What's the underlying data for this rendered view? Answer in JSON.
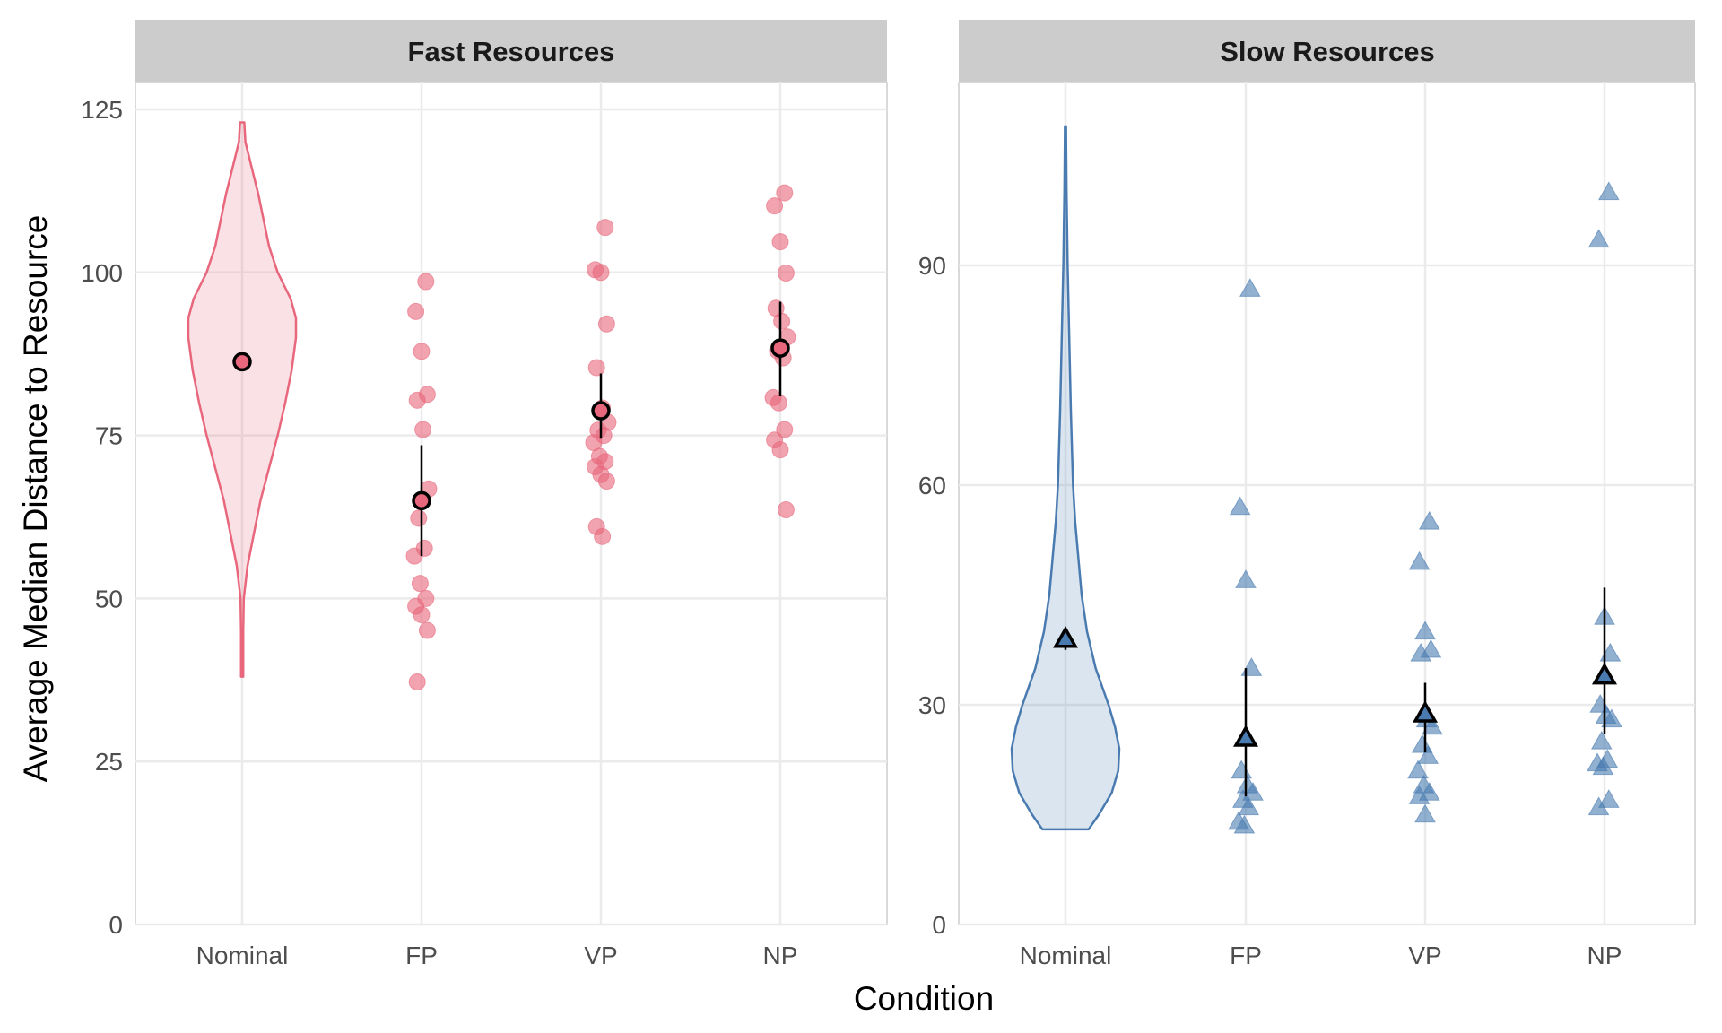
{
  "chart_data": [
    {
      "type": "violin+strip",
      "facet": "Fast Resources",
      "categories": [
        "Nominal",
        "FP",
        "VP",
        "NP"
      ],
      "ylim": [
        0,
        128
      ],
      "yticks": [
        0,
        25,
        50,
        75,
        100,
        125
      ],
      "marker": "circle",
      "color": "#E8677C",
      "violin": {
        "category": "Nominal",
        "min": 38,
        "max": 123,
        "profile": [
          [
            38,
            0.02
          ],
          [
            45,
            0.02
          ],
          [
            50,
            0.03
          ],
          [
            55,
            0.1
          ],
          [
            60,
            0.22
          ],
          [
            65,
            0.34
          ],
          [
            70,
            0.5
          ],
          [
            75,
            0.66
          ],
          [
            80,
            0.8
          ],
          [
            85,
            0.92
          ],
          [
            90,
            1.0
          ],
          [
            93,
            1.0
          ],
          [
            96,
            0.9
          ],
          [
            100,
            0.66
          ],
          [
            104,
            0.5
          ],
          [
            108,
            0.4
          ],
          [
            112,
            0.3
          ],
          [
            116,
            0.18
          ],
          [
            120,
            0.06
          ],
          [
            123,
            0.04
          ]
        ]
      },
      "mean": {
        "Nominal": 86.3,
        "FP": 65.0,
        "VP": 78.8,
        "NP": 88.4
      },
      "error_bars": {
        "FP": [
          56.5,
          73.5
        ],
        "VP": [
          74.5,
          84.5
        ],
        "NP": [
          81,
          95.5
        ]
      },
      "points": {
        "FP": [
          98.6,
          94.0,
          87.9,
          81.3,
          80.4,
          75.9,
          66.8,
          62.3,
          57.7,
          56.5,
          52.3,
          50.0,
          48.8,
          47.5,
          45.1,
          37.2
        ],
        "VP": [
          106.9,
          100.4,
          100.0,
          92.1,
          85.4,
          79.2,
          77.0,
          75.8,
          75.0,
          73.9,
          71.8,
          71.0,
          70.2,
          69.0,
          68.0,
          61.0,
          59.5
        ],
        "NP": [
          112.2,
          110.2,
          104.7,
          99.9,
          94.5,
          92.5,
          90.1,
          88.0,
          86.9,
          80.8,
          80.0,
          75.9,
          74.3,
          72.8,
          63.6
        ]
      },
      "xlabel": "Condition",
      "ylabel": "Average Median Distance to Resource"
    },
    {
      "type": "violin+strip",
      "facet": "Slow Resources",
      "categories": [
        "Nominal",
        "FP",
        "VP",
        "NP"
      ],
      "ylim": [
        0,
        114
      ],
      "yticks": [
        0,
        30,
        60,
        90
      ],
      "marker": "triangle",
      "color": "#4A7BB0",
      "violin": {
        "category": "Nominal",
        "min": 13,
        "max": 109,
        "profile": [
          [
            13,
            0.43
          ],
          [
            15,
            0.62
          ],
          [
            18,
            0.86
          ],
          [
            21,
            0.98
          ],
          [
            24,
            1.0
          ],
          [
            27,
            0.92
          ],
          [
            30,
            0.8
          ],
          [
            35,
            0.56
          ],
          [
            40,
            0.4
          ],
          [
            45,
            0.3
          ],
          [
            50,
            0.24
          ],
          [
            55,
            0.18
          ],
          [
            60,
            0.14
          ],
          [
            70,
            0.1
          ],
          [
            80,
            0.07
          ],
          [
            90,
            0.04
          ],
          [
            100,
            0.02
          ],
          [
            109,
            0.01
          ]
        ]
      },
      "mean": {
        "Nominal": 39.0,
        "FP": 25.5,
        "VP": 28.8,
        "NP": 34.0
      },
      "error_bars": {
        "Nominal": [
          37.5,
          39.0
        ],
        "FP": [
          17.5,
          35.0
        ],
        "VP": [
          23.5,
          33.0
        ],
        "NP": [
          26.0,
          46.0
        ]
      },
      "points": {
        "FP": [
          86.8,
          57.0,
          47.0,
          35.0,
          21.0,
          19.0,
          18.0,
          17.0,
          16.0,
          14.0,
          13.5
        ],
        "VP": [
          55.0,
          49.5,
          40.0,
          37.5,
          37.0,
          28.0,
          27.0,
          24.5,
          23.0,
          21.0,
          19.0,
          18.0,
          17.5,
          15.0
        ],
        "NP": [
          100.0,
          93.5,
          42.0,
          37.0,
          30.0,
          28.5,
          28.0,
          25.0,
          22.5,
          22.0,
          21.5,
          17.0,
          16.0
        ]
      },
      "xlabel": "Condition",
      "ylabel": "Average Median Distance to Resource"
    }
  ],
  "labels": {
    "x_axis_title": "Condition",
    "y_axis_title": "Average Median Distance to Resource",
    "facets": [
      "Fast Resources",
      "Slow Resources"
    ],
    "fast_yticks": [
      "0",
      "25",
      "50",
      "75",
      "100",
      "125"
    ],
    "slow_yticks": [
      "0",
      "30",
      "60",
      "90"
    ],
    "categories": [
      "Nominal",
      "FP",
      "VP",
      "NP"
    ]
  }
}
